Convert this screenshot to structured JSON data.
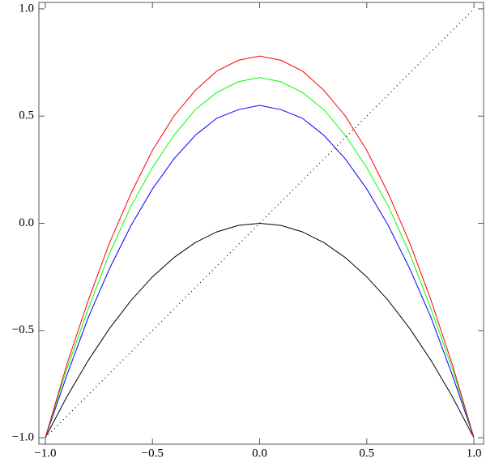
{
  "chart_data": {
    "type": "line",
    "x": [
      -1,
      -0.9,
      -0.8,
      -0.7,
      -0.6,
      -0.5,
      -0.4,
      -0.3,
      -0.2,
      -0.1,
      0,
      0.1,
      0.2,
      0.3,
      0.4,
      0.5,
      0.6,
      0.7,
      0.8,
      0.9,
      1
    ],
    "series": [
      {
        "color": "#000000",
        "values": [
          -1,
          -0.81,
          -0.64,
          -0.49,
          -0.36,
          -0.25,
          -0.16,
          -0.09,
          -0.04,
          -0.01,
          0,
          -0.01,
          -0.04,
          -0.09,
          -0.16,
          -0.25,
          -0.36,
          -0.49,
          -0.64,
          -0.81,
          -1
        ]
      },
      {
        "color": "#0000ff",
        "values": [
          -1,
          -0.71,
          -0.44,
          -0.21,
          -0.01,
          0.16,
          0.3,
          0.41,
          0.49,
          0.53,
          0.55,
          0.53,
          0.49,
          0.41,
          0.3,
          0.16,
          -0.01,
          -0.21,
          -0.44,
          -0.71,
          -1
        ]
      },
      {
        "color": "#00ff00",
        "values": [
          -1,
          -0.68,
          -0.4,
          -0.14,
          0.08,
          0.26,
          0.41,
          0.53,
          0.61,
          0.66,
          0.68,
          0.66,
          0.61,
          0.53,
          0.41,
          0.26,
          0.08,
          -0.14,
          -0.4,
          -0.68,
          -1
        ]
      },
      {
        "color": "#ff0000",
        "values": [
          -1,
          -0.66,
          -0.36,
          -0.09,
          0.14,
          0.34,
          0.5,
          0.62,
          0.71,
          0.76,
          0.78,
          0.76,
          0.71,
          0.62,
          0.5,
          0.34,
          0.14,
          -0.09,
          -0.36,
          -0.66,
          -1
        ]
      },
      {
        "color": "#000000",
        "style": "dotted",
        "values": [
          -1,
          -0.9,
          -0.8,
          -0.7,
          -0.6,
          -0.5,
          -0.4,
          -0.3,
          -0.2,
          -0.1,
          0,
          0.1,
          0.2,
          0.3,
          0.4,
          0.5,
          0.6,
          0.7,
          0.8,
          0.9,
          1
        ]
      }
    ],
    "xlim": [
      -1.03,
      1.045
    ],
    "ylim": [
      -1.03,
      1.03
    ],
    "xticks": [
      {
        "value": -1,
        "label": "−1.0"
      },
      {
        "value": -0.5,
        "label": "−0.5"
      },
      {
        "value": 0,
        "label": "0.0"
      },
      {
        "value": 0.5,
        "label": "0.5"
      },
      {
        "value": 1,
        "label": "1.0"
      }
    ],
    "yticks": [
      {
        "value": -1,
        "label": "−1.0"
      },
      {
        "value": -0.5,
        "label": "−0.5"
      },
      {
        "value": 0,
        "label": "0.0"
      },
      {
        "value": 0.5,
        "label": "0.5"
      },
      {
        "value": 1,
        "label": "1.0"
      }
    ]
  }
}
